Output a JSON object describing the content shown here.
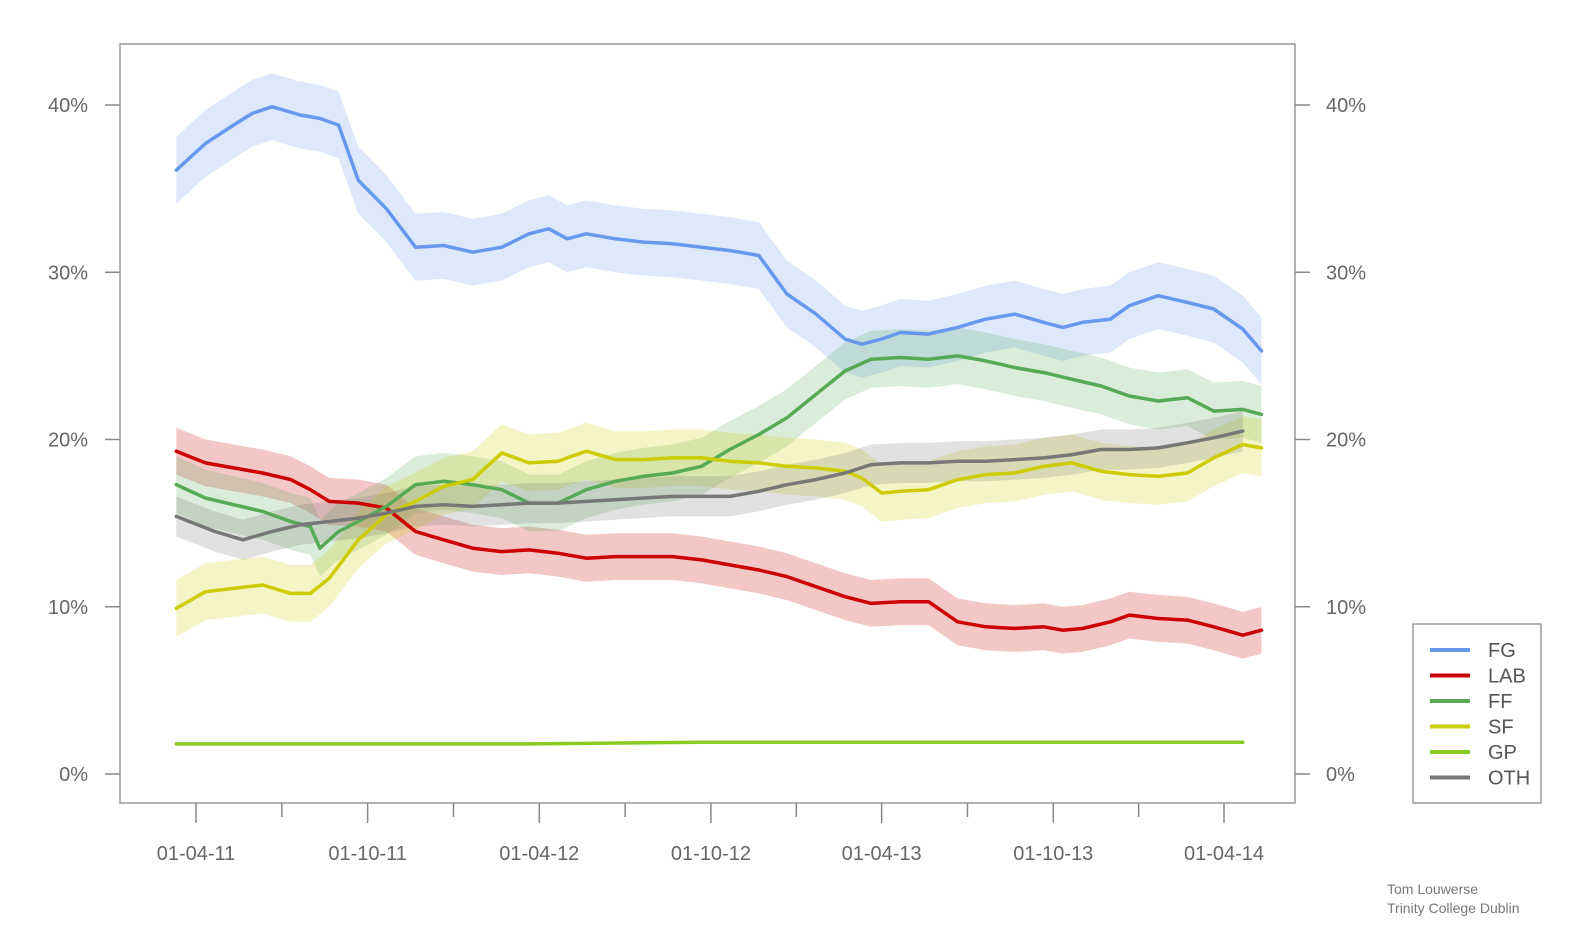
{
  "chart_data": {
    "type": "line",
    "title": "",
    "xlabel": "",
    "ylabel": "",
    "ylim": [
      0,
      0.45
    ],
    "x_ticks": [
      "01-04-11",
      "01-10-11",
      "01-04-12",
      "01-10-12",
      "01-04-13",
      "01-10-13",
      "01-04-14"
    ],
    "x_range": [
      "2011-02-21",
      "2014-05-13"
    ],
    "y_ticks": [
      0,
      0.1,
      0.2,
      0.3,
      0.4
    ],
    "y_tick_labels": [
      "0%",
      "10%",
      "20%",
      "30%",
      "40%"
    ],
    "y_axis_both_sides": true,
    "bands": "shaded uncertainty band around each series",
    "legend_position": "outside-right-bottom",
    "series": [
      {
        "name": "FG",
        "color": "#6699EE",
        "x": [
          "2011-03-11",
          "2011-04-11",
          "2011-05-11",
          "2011-05-31",
          "2011-06-21",
          "2011-07-21",
          "2011-08-11",
          "2011-08-31",
          "2011-09-21",
          "2011-10-21",
          "2011-11-21",
          "2011-12-21",
          "2012-01-21",
          "2012-02-21",
          "2012-03-21",
          "2012-04-11",
          "2012-05-01",
          "2012-05-21",
          "2012-06-21",
          "2012-07-21",
          "2012-08-21",
          "2012-09-21",
          "2012-10-21",
          "2012-11-21",
          "2012-12-21",
          "2013-01-21",
          "2013-02-21",
          "2013-03-11",
          "2013-04-01",
          "2013-04-21",
          "2013-05-21",
          "2013-06-21",
          "2013-07-21",
          "2013-08-21",
          "2013-09-21",
          "2013-10-11",
          "2013-11-01",
          "2013-12-01",
          "2013-12-21",
          "2014-01-21",
          "2014-02-21",
          "2014-03-21",
          "2014-04-21",
          "2014-05-11"
        ],
        "y": [
          0.361,
          0.377,
          0.388,
          0.395,
          0.399,
          0.394,
          0.392,
          0.388,
          0.355,
          0.338,
          0.315,
          0.316,
          0.312,
          0.315,
          0.323,
          0.326,
          0.32,
          0.323,
          0.32,
          0.318,
          0.317,
          0.315,
          0.313,
          0.31,
          0.287,
          0.275,
          0.26,
          0.257,
          0.26,
          0.264,
          0.263,
          0.267,
          0.272,
          0.275,
          0.27,
          0.267,
          0.27,
          0.272,
          0.28,
          0.286,
          0.282,
          0.278,
          0.266,
          0.253
        ]
      },
      {
        "name": "LAB",
        "color": "#CC0000",
        "x": [
          "2011-03-11",
          "2011-04-11",
          "2011-05-11",
          "2011-06-11",
          "2011-07-11",
          "2011-08-01",
          "2011-08-21",
          "2011-09-21",
          "2011-10-21",
          "2011-11-21",
          "2011-12-21",
          "2012-01-21",
          "2012-02-21",
          "2012-03-21",
          "2012-04-21",
          "2012-05-21",
          "2012-06-21",
          "2012-07-21",
          "2012-08-21",
          "2012-09-21",
          "2012-10-21",
          "2012-11-21",
          "2012-12-21",
          "2013-01-21",
          "2013-02-21",
          "2013-03-21",
          "2013-04-21",
          "2013-05-21",
          "2013-06-21",
          "2013-07-21",
          "2013-08-21",
          "2013-09-21",
          "2013-10-11",
          "2013-11-01",
          "2013-12-01",
          "2013-12-21",
          "2014-01-21",
          "2014-02-21",
          "2014-03-21",
          "2014-04-21",
          "2014-05-11"
        ],
        "y": [
          0.193,
          0.186,
          0.183,
          0.18,
          0.176,
          0.17,
          0.163,
          0.162,
          0.159,
          0.145,
          0.14,
          0.135,
          0.133,
          0.134,
          0.132,
          0.129,
          0.13,
          0.13,
          0.13,
          0.128,
          0.125,
          0.122,
          0.118,
          0.112,
          0.106,
          0.102,
          0.103,
          0.103,
          0.091,
          0.088,
          0.087,
          0.088,
          0.086,
          0.087,
          0.091,
          0.095,
          0.093,
          0.092,
          0.088,
          0.083,
          0.086
        ]
      },
      {
        "name": "FF",
        "color": "#55AA55",
        "x": [
          "2011-03-11",
          "2011-04-11",
          "2011-05-11",
          "2011-06-11",
          "2011-07-11",
          "2011-08-01",
          "2011-08-11",
          "2011-08-31",
          "2011-09-21",
          "2011-10-21",
          "2011-11-21",
          "2011-12-21",
          "2012-01-21",
          "2012-02-21",
          "2012-03-21",
          "2012-04-21",
          "2012-05-21",
          "2012-06-21",
          "2012-07-21",
          "2012-08-21",
          "2012-09-21",
          "2012-10-21",
          "2012-11-21",
          "2012-12-21",
          "2013-01-21",
          "2013-02-21",
          "2013-03-21",
          "2013-04-21",
          "2013-05-21",
          "2013-06-21",
          "2013-07-21",
          "2013-08-21",
          "2013-09-21",
          "2013-10-21",
          "2013-11-21",
          "2013-12-21",
          "2014-01-21",
          "2014-02-21",
          "2014-03-21",
          "2014-04-21",
          "2014-05-11"
        ],
        "y": [
          0.173,
          0.165,
          0.161,
          0.157,
          0.151,
          0.148,
          0.135,
          0.145,
          0.151,
          0.16,
          0.173,
          0.175,
          0.173,
          0.17,
          0.162,
          0.162,
          0.17,
          0.175,
          0.178,
          0.18,
          0.184,
          0.194,
          0.203,
          0.213,
          0.227,
          0.241,
          0.248,
          0.249,
          0.248,
          0.25,
          0.247,
          0.243,
          0.24,
          0.236,
          0.232,
          0.226,
          0.223,
          0.225,
          0.217,
          0.218,
          0.215
        ]
      },
      {
        "name": "SF",
        "color": "#CCCC00",
        "x": [
          "2011-03-11",
          "2011-04-11",
          "2011-05-11",
          "2011-06-11",
          "2011-07-11",
          "2011-08-01",
          "2011-08-21",
          "2011-09-21",
          "2011-10-21",
          "2011-11-21",
          "2011-12-21",
          "2012-01-21",
          "2012-02-21",
          "2012-03-21",
          "2012-04-21",
          "2012-05-21",
          "2012-06-21",
          "2012-07-21",
          "2012-08-21",
          "2012-09-21",
          "2012-10-21",
          "2012-11-21",
          "2012-12-21",
          "2013-01-21",
          "2013-02-21",
          "2013-03-11",
          "2013-04-01",
          "2013-04-21",
          "2013-05-21",
          "2013-06-21",
          "2013-07-21",
          "2013-08-21",
          "2013-09-21",
          "2013-10-21",
          "2013-11-21",
          "2013-12-21",
          "2014-01-21",
          "2014-02-21",
          "2014-03-21",
          "2014-04-21",
          "2014-05-11"
        ],
        "y": [
          0.099,
          0.109,
          0.111,
          0.113,
          0.108,
          0.108,
          0.117,
          0.14,
          0.155,
          0.163,
          0.172,
          0.176,
          0.192,
          0.186,
          0.187,
          0.193,
          0.188,
          0.188,
          0.189,
          0.189,
          0.187,
          0.186,
          0.184,
          0.183,
          0.181,
          0.177,
          0.168,
          0.169,
          0.17,
          0.176,
          0.179,
          0.18,
          0.184,
          0.186,
          0.181,
          0.179,
          0.178,
          0.18,
          0.189,
          0.197,
          0.195
        ]
      },
      {
        "name": "GP",
        "color": "#88CC22",
        "x": [
          "2011-03-11",
          "2011-09-21",
          "2012-03-21",
          "2012-09-21",
          "2013-03-21",
          "2013-09-21",
          "2014-04-21"
        ],
        "y": [
          0.018,
          0.018,
          0.018,
          0.019,
          0.019,
          0.019,
          0.019
        ]
      },
      {
        "name": "OTH",
        "color": "#777777",
        "x": [
          "2011-03-11",
          "2011-04-21",
          "2011-05-21",
          "2011-06-21",
          "2011-07-21",
          "2011-08-21",
          "2011-09-21",
          "2011-10-21",
          "2011-11-21",
          "2011-12-21",
          "2012-01-21",
          "2012-02-21",
          "2012-03-21",
          "2012-04-21",
          "2012-05-21",
          "2012-06-21",
          "2012-07-21",
          "2012-08-21",
          "2012-09-21",
          "2012-10-21",
          "2012-11-21",
          "2012-12-21",
          "2013-01-21",
          "2013-02-21",
          "2013-03-21",
          "2013-04-21",
          "2013-05-21",
          "2013-06-21",
          "2013-07-21",
          "2013-08-21",
          "2013-09-21",
          "2013-10-21",
          "2013-11-21",
          "2013-12-21",
          "2014-01-21",
          "2014-02-21",
          "2014-03-21",
          "2014-04-21"
        ],
        "y": [
          0.154,
          0.145,
          0.14,
          0.145,
          0.149,
          0.151,
          0.153,
          0.156,
          0.16,
          0.161,
          0.16,
          0.161,
          0.162,
          0.162,
          0.163,
          0.164,
          0.165,
          0.166,
          0.166,
          0.166,
          0.169,
          0.173,
          0.176,
          0.18,
          0.185,
          0.186,
          0.186,
          0.187,
          0.187,
          0.188,
          0.189,
          0.191,
          0.194,
          0.194,
          0.195,
          0.198,
          0.201,
          0.205
        ]
      }
    ]
  },
  "credit": {
    "line1": "Tom Louwerse",
    "line2": "Trinity College Dublin"
  }
}
